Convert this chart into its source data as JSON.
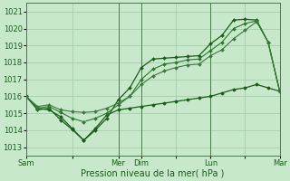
{
  "background_color": "#c8e8cc",
  "grid_color": "#a0c8a8",
  "line_color_dark": "#1a5c1a",
  "line_color_mid": "#2a7a2a",
  "xlabel": "Pression niveau de la mer( hPa )",
  "ylim": [
    1012.5,
    1021.5
  ],
  "yticks": [
    1013,
    1014,
    1015,
    1016,
    1017,
    1018,
    1019,
    1020,
    1021
  ],
  "xtick_labels": [
    "Sam",
    "",
    "Mer",
    "Dim",
    "",
    "Lun",
    "",
    "Mar"
  ],
  "xtick_positions": [
    0,
    2,
    4,
    5,
    6.5,
    8,
    9.5,
    11
  ],
  "vlines": [
    0,
    4,
    5,
    8,
    11
  ],
  "series_top_x": [
    0,
    0.5,
    1,
    1.5,
    2,
    2.5,
    3,
    3.5,
    4,
    4.5,
    5,
    5.5,
    6,
    6.5,
    7,
    7.5,
    8,
    8.5,
    9,
    9.5,
    10,
    10.5,
    11
  ],
  "series_top_y": [
    1016.0,
    1015.2,
    1015.3,
    1014.6,
    1014.05,
    1013.4,
    1014.0,
    1014.7,
    1015.8,
    1016.5,
    1017.7,
    1018.2,
    1018.25,
    1018.3,
    1018.35,
    1018.4,
    1019.1,
    1019.6,
    1020.5,
    1020.55,
    1020.5,
    1019.2,
    1016.3
  ],
  "series_mid_x": [
    0,
    0.5,
    1,
    1.5,
    2,
    2.5,
    3,
    3.5,
    4,
    4.5,
    5,
    5.5,
    6,
    6.5,
    7,
    7.5,
    8,
    8.5,
    9,
    9.5,
    10,
    10.5,
    11
  ],
  "series_mid_y": [
    1016.0,
    1015.3,
    1015.4,
    1015.05,
    1014.7,
    1014.5,
    1014.7,
    1015.0,
    1015.5,
    1016.0,
    1017.0,
    1017.6,
    1017.9,
    1018.0,
    1018.15,
    1018.2,
    1018.7,
    1019.2,
    1020.0,
    1020.3,
    1020.45,
    1019.2,
    1016.3
  ],
  "series_upper_x": [
    0,
    0.5,
    1,
    1.5,
    2,
    2.5,
    3,
    3.5,
    4,
    4.5,
    5,
    5.5,
    6,
    6.5,
    7,
    7.5,
    8,
    8.5,
    9,
    9.5,
    10,
    10.5,
    11
  ],
  "series_upper_y": [
    1016.0,
    1015.4,
    1015.5,
    1015.2,
    1015.1,
    1015.05,
    1015.1,
    1015.3,
    1015.6,
    1016.0,
    1016.7,
    1017.2,
    1017.5,
    1017.7,
    1017.85,
    1017.9,
    1018.4,
    1018.75,
    1019.4,
    1019.9,
    1020.4,
    1019.2,
    1016.3
  ],
  "series_bot_x": [
    0,
    0.5,
    1,
    1.5,
    2,
    2.5,
    3,
    3.5,
    4,
    4.5,
    5,
    5.5,
    6,
    6.5,
    7,
    7.5,
    8,
    8.5,
    9,
    9.5,
    10,
    10.5,
    11
  ],
  "series_bot_y": [
    1016.0,
    1015.3,
    1015.2,
    1014.8,
    1014.1,
    1013.4,
    1014.1,
    1014.9,
    1015.2,
    1015.3,
    1015.4,
    1015.5,
    1015.6,
    1015.7,
    1015.8,
    1015.9,
    1016.0,
    1016.2,
    1016.4,
    1016.5,
    1016.7,
    1016.5,
    1016.3
  ]
}
